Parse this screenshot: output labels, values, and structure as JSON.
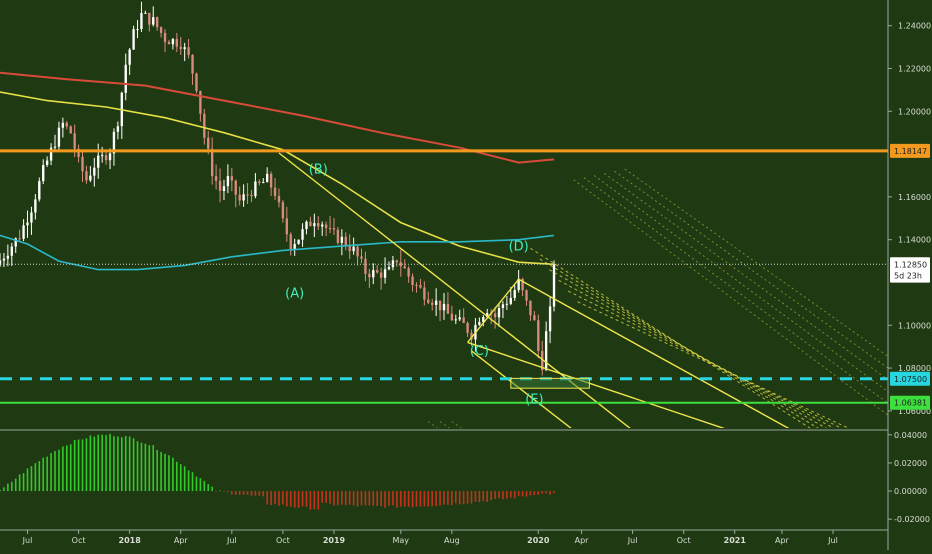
{
  "chart_data": {
    "type": "candlestick",
    "instrument_style": "weekly price chart with indicators and Elliott wave labels",
    "colors": {
      "background": "#1f3a12",
      "up_candle": "#ffffff",
      "down_candle": "#d98b7e",
      "ma_long": "#d84b3a",
      "ma_mid": "#e6df45",
      "ma_short": "#2ab9c9",
      "channel": "#f1e54b",
      "resistance": "#f39a1e",
      "support_dashed": "#28d6e0",
      "support_solid": "#3ee03e",
      "osc_positive": "#32c92a",
      "osc_negative": "#c0341e",
      "wave_label": "#3ef0c0"
    },
    "price_axis": {
      "ticks": [
        "1.24000",
        "1.22000",
        "1.20000",
        "1.16000",
        "1.14000",
        "1.10000",
        "1.08000",
        "1.06000"
      ],
      "tick_values": [
        1.24,
        1.22,
        1.2,
        1.16,
        1.14,
        1.1,
        1.08,
        1.06
      ],
      "ylim": [
        1.052,
        1.252
      ]
    },
    "price_tags": [
      {
        "label": "1.18147",
        "value": 1.18147,
        "style": "resistance"
      },
      {
        "label": "1.12850",
        "value": 1.1285,
        "style": "current"
      },
      {
        "label": "5d 23h",
        "value": 1.1232,
        "style": "countdown"
      },
      {
        "label": "1.07500",
        "value": 1.075,
        "style": "support_dashed"
      },
      {
        "label": "1.06381",
        "value": 1.06381,
        "style": "support_solid"
      }
    ],
    "osc_axis": {
      "ticks": [
        "0.04000",
        "0.02000",
        "0.00000",
        "-0.02000"
      ],
      "tick_values": [
        0.04,
        0.02,
        0.0,
        -0.02
      ],
      "ylim": [
        -0.022,
        0.042
      ]
    },
    "time_axis": {
      "ticks": [
        "Jul",
        "Oct",
        "2018",
        "Apr",
        "Jul",
        "Oct",
        "2019",
        "May",
        "Aug",
        "2020",
        "Apr",
        "Jul",
        "Oct",
        "2021",
        "Apr",
        "Jul"
      ],
      "tick_weeks": [
        0,
        13,
        26,
        39,
        52,
        65,
        78,
        95,
        108,
        130,
        141,
        154,
        167,
        180,
        192,
        205
      ],
      "bold": [
        "2018",
        "2019",
        "2020",
        "2021"
      ],
      "range_weeks": [
        -7,
        219
      ]
    },
    "wave_labels": [
      {
        "text": "(A)",
        "week": 68,
        "price": 1.113
      },
      {
        "text": "(B)",
        "week": 74,
        "price": 1.171
      },
      {
        "text": "(C)",
        "week": 115,
        "price": 1.086
      },
      {
        "text": "(D)",
        "week": 125,
        "price": 1.135
      },
      {
        "text": "(E)",
        "week": 129,
        "price": 1.0635
      }
    ],
    "support_box": {
      "week_start": 123,
      "week_end": 143,
      "price_low": 1.0706,
      "price_high": 1.0752
    }
  }
}
